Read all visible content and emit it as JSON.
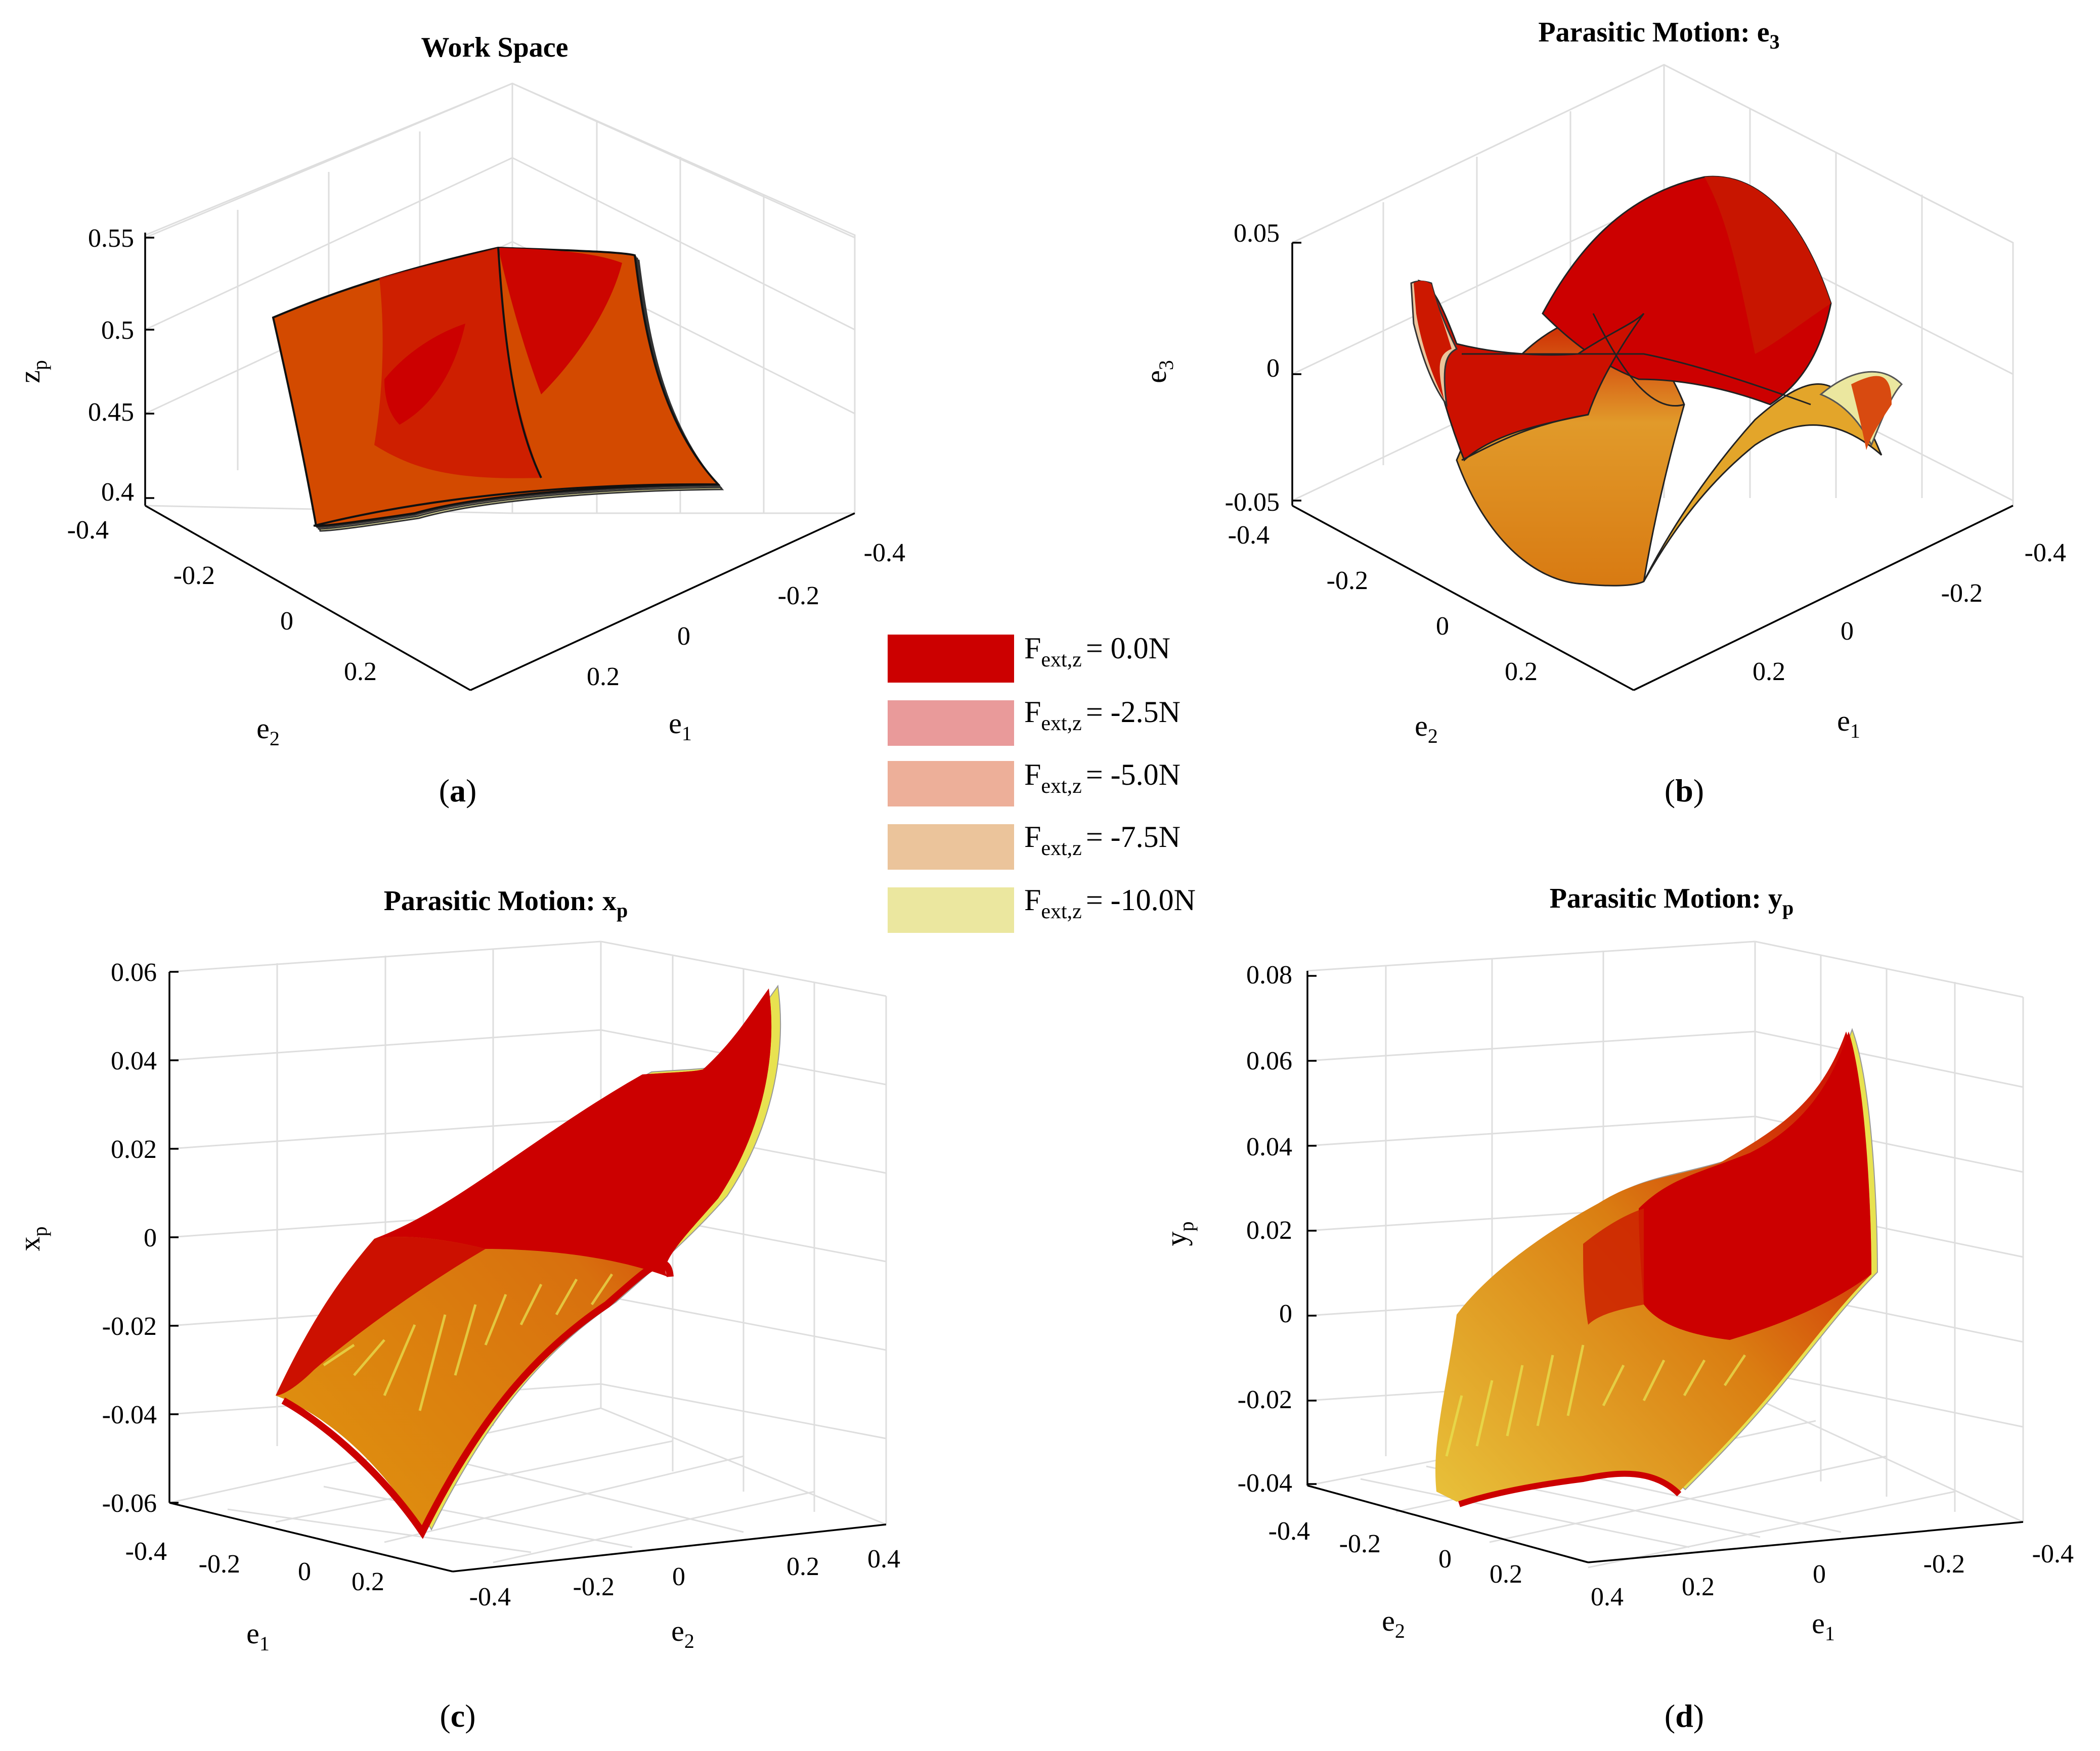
{
  "chart_data": [
    {
      "type": "surface3d",
      "panel": "a",
      "caption": "(a)",
      "title": "Work Space",
      "xlabel": "e",
      "xlabel_sub": "1",
      "ylabel": "e",
      "ylabel_sub": "2",
      "zlabel": "z",
      "zlabel_sub": "p",
      "x_ticks": [
        "-0.4",
        "-0.2",
        "0",
        "0.2"
      ],
      "y_ticks": [
        "-0.4",
        "-0.2",
        "0",
        "0.2"
      ],
      "z_ticks": [
        "0.4",
        "0.45",
        "0.5",
        "0.55"
      ],
      "xlim": [
        -0.4,
        0.3
      ],
      "ylim": [
        -0.4,
        0.3
      ],
      "zlim": [
        0.4,
        0.55
      ],
      "grid": true
    },
    {
      "type": "surface3d",
      "panel": "b",
      "caption": "(b)",
      "title": "Parasitic Motion: e",
      "title_sub": "3",
      "xlabel": "e",
      "xlabel_sub": "1",
      "ylabel": "e",
      "ylabel_sub": "2",
      "zlabel": "e",
      "zlabel_sub": "3",
      "x_ticks": [
        "-0.4",
        "-0.2",
        "0",
        "0.2"
      ],
      "y_ticks": [
        "-0.4",
        "-0.2",
        "0",
        "0.2"
      ],
      "z_ticks": [
        "-0.05",
        "0",
        "0.05"
      ],
      "xlim": [
        -0.4,
        0.3
      ],
      "ylim": [
        -0.4,
        0.3
      ],
      "zlim": [
        -0.05,
        0.05
      ],
      "grid": true
    },
    {
      "type": "surface3d",
      "panel": "c",
      "caption": "(c)",
      "title": "Parasitic Motion: x",
      "title_sub": "p",
      "xlabel": "e",
      "xlabel_sub": "1",
      "ylabel": "e",
      "ylabel_sub": "2",
      "zlabel": "x",
      "zlabel_sub": "p",
      "x_ticks": [
        "-0.4",
        "-0.2",
        "0",
        "0.2"
      ],
      "y_ticks": [
        "-0.4",
        "-0.2",
        "0",
        "0.2",
        "0.4"
      ],
      "z_ticks": [
        "-0.06",
        "-0.04",
        "-0.02",
        "0",
        "0.02",
        "0.04",
        "0.06"
      ],
      "xlim": [
        -0.4,
        0.3
      ],
      "ylim": [
        -0.4,
        0.4
      ],
      "zlim": [
        -0.06,
        0.06
      ],
      "grid": true
    },
    {
      "type": "surface3d",
      "panel": "d",
      "caption": "(d)",
      "title": "Parasitic Motion: y",
      "title_sub": "p",
      "xlabel": "e",
      "xlabel_sub": "1",
      "ylabel": "e",
      "ylabel_sub": "2",
      "zlabel": "y",
      "zlabel_sub": "p",
      "x_ticks": [
        "-0.4",
        "-0.2",
        "0",
        "0.2",
        "0.4"
      ],
      "y_ticks": [
        "-0.4",
        "-0.2",
        "0",
        "0.2"
      ],
      "z_ticks": [
        "-0.04",
        "-0.02",
        "0",
        "0.02",
        "0.04",
        "0.06",
        "0.08"
      ],
      "xlim": [
        -0.4,
        0.4
      ],
      "ylim": [
        -0.4,
        0.3
      ],
      "zlim": [
        -0.04,
        0.08
      ],
      "grid": true
    }
  ],
  "legend": {
    "label_main": "F",
    "label_sub": "ext,z",
    "items": [
      {
        "value": "=  0.0N",
        "color": "#cc0000"
      },
      {
        "value": "= -2.5N",
        "color": "#e99a9a"
      },
      {
        "value": "= -5.0N",
        "color": "#edaf99"
      },
      {
        "value": "= -7.5N",
        "color": "#ebc49b"
      },
      {
        "value": "= -10.0N",
        "color": "#ebe79f"
      }
    ]
  },
  "surface_colors": {
    "red": "#cc0000",
    "red_dark": "#b81800",
    "orange": "#d35400",
    "orange_mid": "#dc7a10",
    "gold": "#e3a52a",
    "yellow": "#e8e250"
  }
}
